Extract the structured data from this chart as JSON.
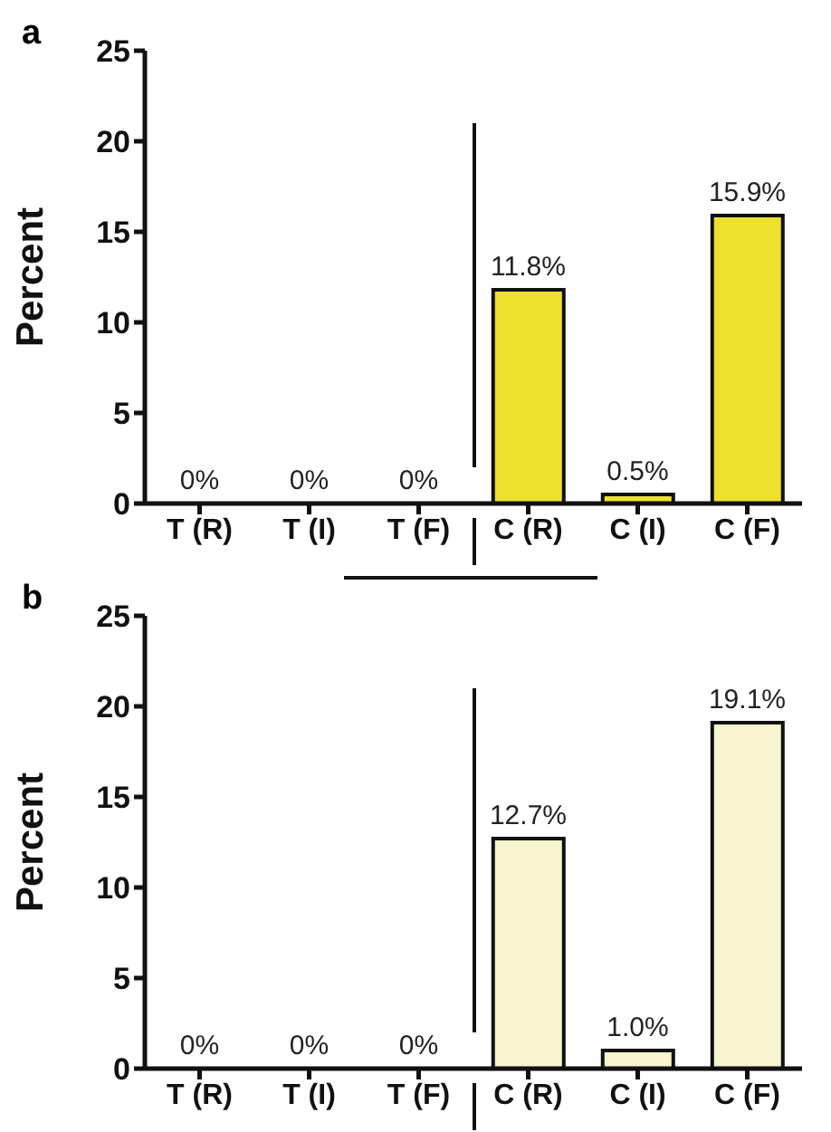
{
  "chart_data": [
    {
      "type": "bar",
      "title": "a",
      "ylabel": "Percent",
      "categories": [
        "T (R)",
        "T (I)",
        "T (F)",
        "C (R)",
        "C (I)",
        "C (F)"
      ],
      "values": [
        0,
        0,
        0,
        11.8,
        0.5,
        15.9
      ],
      "value_labels": [
        "0%",
        "0%",
        "0%",
        "11.8%",
        "0.5%",
        "15.9%"
      ],
      "color": "#ede12e",
      "ylim": [
        0,
        25
      ],
      "yticks": [
        0,
        5,
        10,
        15,
        20,
        25
      ],
      "grid": false
    },
    {
      "type": "bar",
      "title": "b",
      "ylabel": "Percent",
      "categories": [
        "T (R)",
        "T (I)",
        "T (F)",
        "C (R)",
        "C (I)",
        "C (F)"
      ],
      "values": [
        0,
        0,
        0,
        12.7,
        1.0,
        19.1
      ],
      "value_labels": [
        "0%",
        "0%",
        "0%",
        "12.7%",
        "1.0%",
        "19.1%"
      ],
      "color": "#f7f4cf",
      "ylim": [
        0,
        25
      ],
      "yticks": [
        0,
        5,
        10,
        15,
        20,
        25
      ],
      "grid": false
    }
  ]
}
